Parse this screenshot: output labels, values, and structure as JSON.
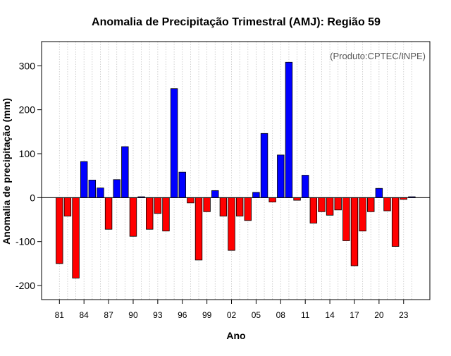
{
  "chart_data": {
    "type": "bar",
    "title": "Anomalia de Precipitação Trimestral (AMJ): Região 59",
    "xlabel": "Ano",
    "ylabel": "Anomalia de precipitação (mm)",
    "annotation": "(Produto:CPTEC/INPE)",
    "ylim": [
      -232,
      355
    ],
    "yticks": [
      -200,
      -100,
      0,
      100,
      200,
      300
    ],
    "ytick_labels": [
      "-200",
      "-100",
      "0",
      "100",
      "200",
      "300"
    ],
    "xtick_labels": [
      "81",
      "84",
      "87",
      "90",
      "93",
      "96",
      "99",
      "02",
      "05",
      "08",
      "11",
      "14",
      "17",
      "20",
      "23"
    ],
    "xtick_every": 3,
    "positive_color": "#0000ff",
    "negative_color": "#ff0000",
    "categories": [
      "1981",
      "1982",
      "1983",
      "1984",
      "1985",
      "1986",
      "1987",
      "1988",
      "1989",
      "1990",
      "1991",
      "1992",
      "1993",
      "1994",
      "1995",
      "1996",
      "1997",
      "1998",
      "1999",
      "2000",
      "2001",
      "2002",
      "2003",
      "2004",
      "2005",
      "2006",
      "2007",
      "2008",
      "2009",
      "2010",
      "2011",
      "2012",
      "2013",
      "2014",
      "2015",
      "2016",
      "2017",
      "2018",
      "2019",
      "2020",
      "2021",
      "2022",
      "2023",
      "2024"
    ],
    "values": [
      -150,
      -42,
      -183,
      82,
      40,
      22,
      -72,
      41,
      116,
      -88,
      2,
      -72,
      -36,
      -76,
      248,
      58,
      -12,
      -142,
      -32,
      16,
      -42,
      -120,
      -42,
      -52,
      12,
      146,
      -10,
      97,
      308,
      -6,
      51,
      -58,
      -32,
      -40,
      -28,
      -98,
      -155,
      -76,
      -32,
      21,
      -30,
      -111,
      -4,
      2
    ],
    "grid": true
  }
}
